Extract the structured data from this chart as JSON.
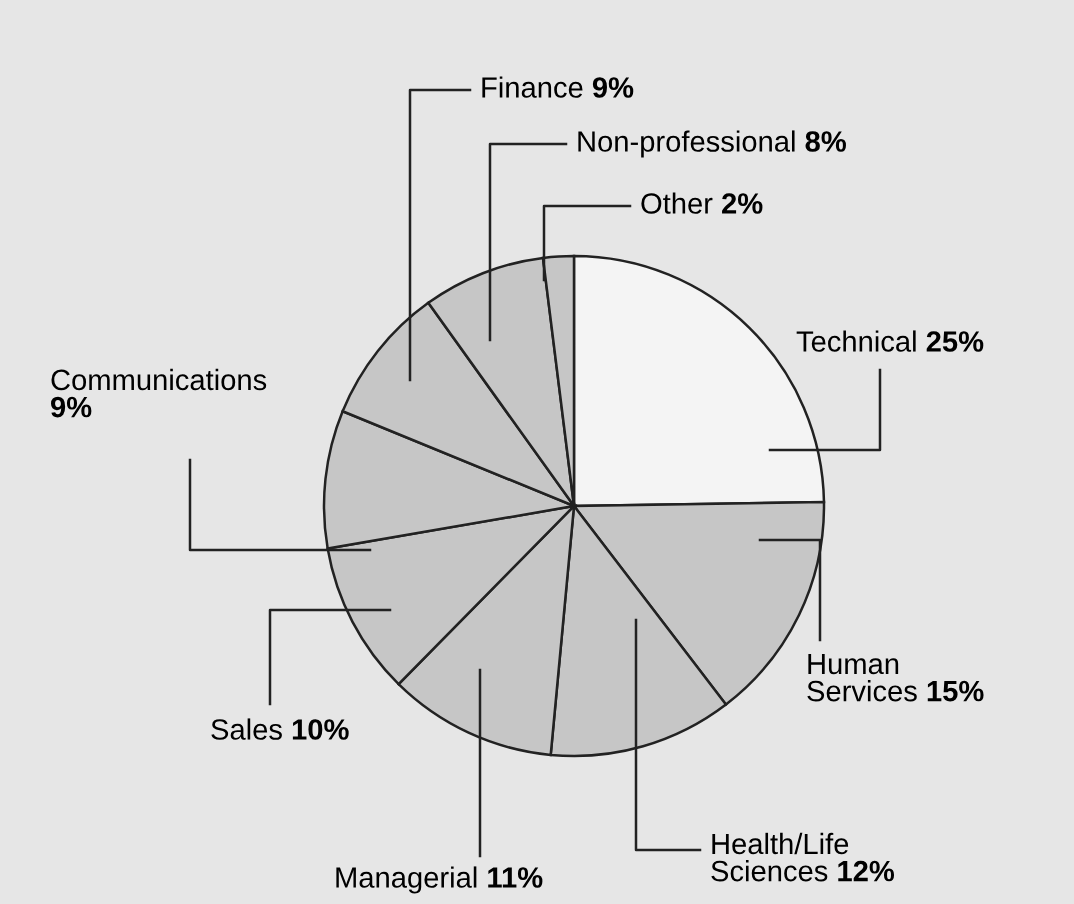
{
  "chart_data": {
    "type": "pie",
    "categories": [
      "Technical",
      "Human Services",
      "Health/Life Sciences",
      "Managerial",
      "Sales",
      "Communications",
      "Finance",
      "Non-professional",
      "Other"
    ],
    "values": [
      25,
      15,
      12,
      11,
      10,
      9,
      9,
      8,
      2
    ],
    "value_labels": [
      "25%",
      "15%",
      "12%",
      "11%",
      "10%",
      "9%",
      "9%",
      "8%",
      "2%"
    ],
    "colors": [
      "#f4f4f4",
      "#c6c6c6",
      "#c6c6c6",
      "#c6c6c6",
      "#c6c6c6",
      "#c6c6c6",
      "#c6c6c6",
      "#c6c6c6",
      "#c6c6c6"
    ]
  }
}
